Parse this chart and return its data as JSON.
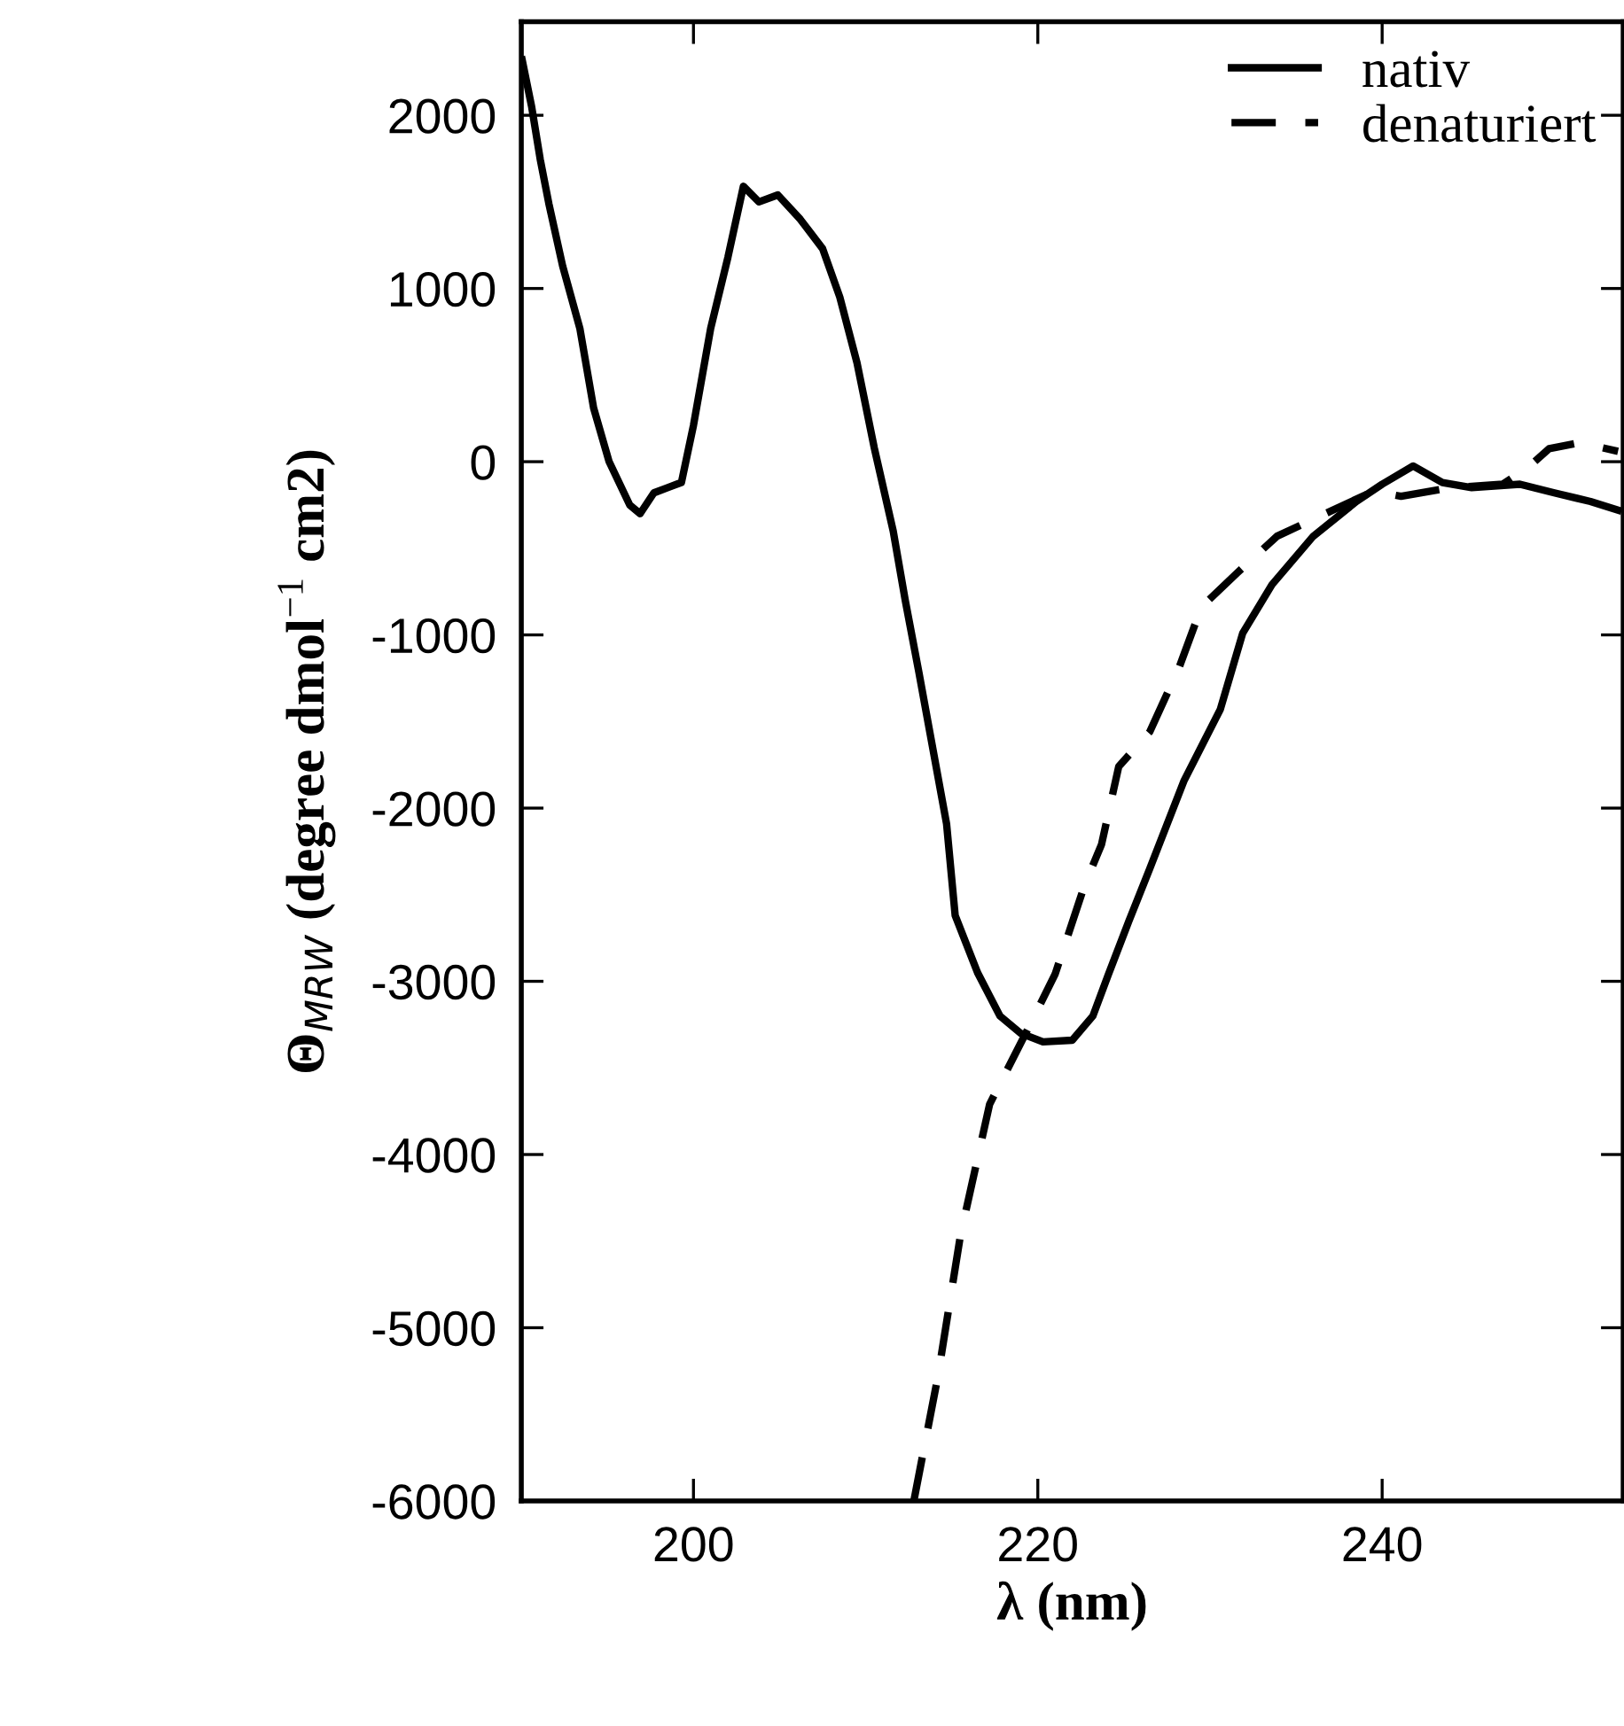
{
  "chart_data": {
    "type": "line",
    "xlabel": "λ (nm)",
    "ylabel": "Θ$_{MRW}$ (degree dmol$^{−1}$ cm2)",
    "xlim": [
      190,
      254
    ],
    "xticks": [
      200,
      220,
      240
    ],
    "ylim": [
      -6000,
      2540
    ],
    "yticks": [
      -6000,
      -5000,
      -4000,
      -3000,
      -2000,
      -1000,
      0,
      1000,
      2000
    ],
    "grid": false,
    "legend": "top right",
    "series": [
      {
        "name": "nativ",
        "color": "#000000",
        "line_style": "solid",
        "x": [
          190.05,
          190.6,
          191.1,
          191.6,
          192.4,
          193.4,
          194.2,
          195.1,
          196.3,
          196.9,
          197.7,
          198.5,
          199.3,
          200,
          201,
          202,
          202.9,
          203.8,
          204.9,
          206.2,
          207.5,
          208.5,
          209.5,
          210.5,
          211.6,
          212.3,
          213.1,
          214.7,
          215.2,
          216.5,
          217.8,
          219.0,
          220.3,
          222,
          223.2,
          224.1,
          225.3,
          226.5,
          228.5,
          230.6,
          231.9,
          233.6,
          236,
          238.5,
          240,
          241.8,
          243.5,
          245.2,
          248,
          250,
          252.1,
          253.7
        ],
        "values": [
          2320,
          2050,
          1745,
          1490,
          1130,
          770,
          310,
          0,
          -250,
          -300,
          -180,
          -150,
          -120,
          210,
          770,
          1180,
          1590,
          1500,
          1540,
          1400,
          1230,
          950,
          570,
          80,
          -400,
          -800,
          -1220,
          -2090,
          -2620,
          -2950,
          -3200,
          -3300,
          -3350,
          -3340,
          -3200,
          -2960,
          -2650,
          -2350,
          -1840,
          -1430,
          -990,
          -710,
          -430,
          -230,
          -130,
          -25,
          -120,
          -150,
          -130,
          -180,
          -230,
          -280
        ]
      },
      {
        "name": "denaturiert",
        "color": "#000000",
        "line_style": "dashed",
        "x": [
          212.8,
          214.2,
          215.5,
          217.2,
          219.3,
          221,
          222.7,
          223.7,
          224.7,
          226.5,
          228.2,
          229.5,
          231.6,
          233.9,
          236.7,
          239.5,
          241.1,
          244,
          247,
          248.5,
          249.7,
          251.5,
          253.7
        ],
        "values": [
          -6000,
          -5280,
          -4470,
          -3710,
          -3300,
          -2960,
          -2450,
          -2210,
          -1760,
          -1560,
          -1190,
          -840,
          -640,
          -430,
          -300,
          -170,
          -200,
          -150,
          -130,
          -30,
          75,
          110,
          60
        ]
      }
    ]
  }
}
